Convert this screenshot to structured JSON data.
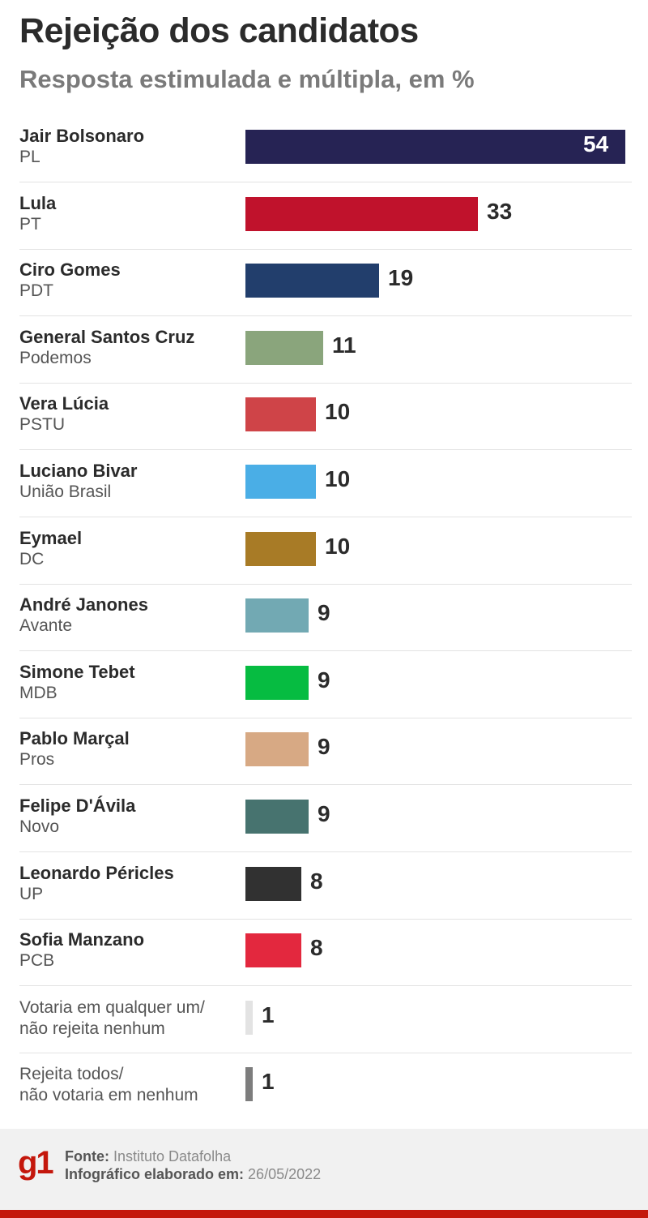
{
  "header": {
    "title": "Rejeição dos candidatos",
    "subtitle": "Resposta estimulada e múltipla, em %"
  },
  "chart_data": {
    "type": "bar",
    "orientation": "horizontal",
    "title": "Rejeição dos candidatos",
    "subtitle": "Resposta estimulada e múltipla, em %",
    "xlim": [
      0,
      54
    ],
    "grid": false,
    "items": [
      {
        "name": "Jair Bolsonaro",
        "party": "PL",
        "value": 54,
        "color": "#262354",
        "label_inside": true
      },
      {
        "name": "Lula",
        "party": "PT",
        "value": 33,
        "color": "#c0122c"
      },
      {
        "name": "Ciro Gomes",
        "party": "PDT",
        "value": 19,
        "color": "#223e6c"
      },
      {
        "name": "General Santos Cruz",
        "party": "Podemos",
        "value": 11,
        "color": "#8aa57c"
      },
      {
        "name": "Vera Lúcia",
        "party": "PSTU",
        "value": 10,
        "color": "#cf4448"
      },
      {
        "name": "Luciano Bivar",
        "party": "União Brasil",
        "value": 10,
        "color": "#4aaee6"
      },
      {
        "name": "Eymael",
        "party": "DC",
        "value": 10,
        "color": "#a87b26"
      },
      {
        "name": "André Janones",
        "party": "Avante",
        "value": 9,
        "color": "#72a9b3"
      },
      {
        "name": "Simone Tebet",
        "party": "MDB",
        "value": 9,
        "color": "#06bc41"
      },
      {
        "name": "Pablo Marçal",
        "party": "Pros",
        "value": 9,
        "color": "#d7a984"
      },
      {
        "name": "Felipe D'Ávila",
        "party": "Novo",
        "value": 9,
        "color": "#47736f"
      },
      {
        "name": "Leonardo Péricles",
        "party": "UP",
        "value": 8,
        "color": "#313131"
      },
      {
        "name": "Sofia Manzano",
        "party": "PCB",
        "value": 8,
        "color": "#e3283e"
      },
      {
        "lines": [
          "Votaria em qualquer um/",
          "não rejeita nenhum"
        ],
        "value": 1,
        "color": "#e3e3e3"
      },
      {
        "lines": [
          "Rejeita todos/",
          "não votaria em nenhum"
        ],
        "value": 1,
        "color": "#7d7d7d"
      }
    ]
  },
  "footer": {
    "logo": "g1",
    "source_label": "Fonte:",
    "source_value": "Instituto Datafolha",
    "date_label": "Infográfico elaborado em:",
    "date_value": "26/05/2022",
    "accent_color": "#c4170c"
  }
}
